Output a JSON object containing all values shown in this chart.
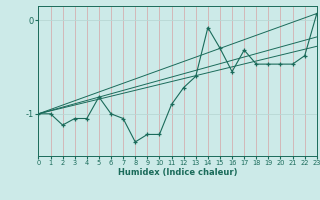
{
  "xlabel": "Humidex (Indice chaleur)",
  "bg_color": "#cceae8",
  "line_color": "#1a6b5a",
  "vgrid_color": "#d4b0b0",
  "hgrid_color": "#b8d8d4",
  "x_min": 0,
  "x_max": 23,
  "y_min": -1.45,
  "y_max": 0.15,
  "yticks": [
    -1,
    0
  ],
  "xticks": [
    0,
    1,
    2,
    3,
    4,
    5,
    6,
    7,
    8,
    9,
    10,
    11,
    12,
    13,
    14,
    15,
    16,
    17,
    18,
    19,
    20,
    21,
    22,
    23
  ],
  "series1_x": [
    0,
    1,
    2,
    3,
    4,
    5,
    6,
    7,
    8,
    9,
    10,
    11,
    12,
    13,
    14,
    15,
    16,
    17,
    18,
    19,
    20,
    21,
    22,
    23
  ],
  "series1_y": [
    -1.0,
    -1.0,
    -1.12,
    -1.05,
    -1.05,
    -0.82,
    -1.0,
    -1.05,
    -1.3,
    -1.22,
    -1.22,
    -0.9,
    -0.72,
    -0.6,
    -0.08,
    -0.3,
    -0.55,
    -0.32,
    -0.47,
    -0.47,
    -0.47,
    -0.47,
    -0.38,
    0.07
  ],
  "trend1_x": [
    0,
    23
  ],
  "trend1_y": [
    -1.0,
    0.07
  ],
  "trend2_x": [
    0,
    23
  ],
  "trend2_y": [
    -1.0,
    -0.18
  ],
  "trend3_x": [
    0,
    23
  ],
  "trend3_y": [
    -1.0,
    -0.28
  ]
}
